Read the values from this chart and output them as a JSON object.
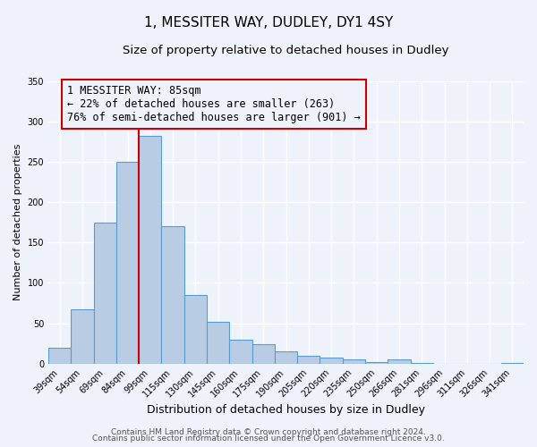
{
  "title": "1, MESSITER WAY, DUDLEY, DY1 4SY",
  "subtitle": "Size of property relative to detached houses in Dudley",
  "xlabel": "Distribution of detached houses by size in Dudley",
  "ylabel": "Number of detached properties",
  "bar_labels": [
    "39sqm",
    "54sqm",
    "69sqm",
    "84sqm",
    "99sqm",
    "115sqm",
    "130sqm",
    "145sqm",
    "160sqm",
    "175sqm",
    "190sqm",
    "205sqm",
    "220sqm",
    "235sqm",
    "250sqm",
    "266sqm",
    "281sqm",
    "296sqm",
    "311sqm",
    "326sqm",
    "341sqm"
  ],
  "bar_values": [
    20,
    67,
    175,
    250,
    282,
    170,
    85,
    52,
    30,
    24,
    15,
    10,
    7,
    5,
    2,
    5,
    1,
    0,
    0,
    0,
    1
  ],
  "bar_color": "#b8cce4",
  "bar_edgecolor": "#5b9bd5",
  "vline_color": "#cc0000",
  "vline_index": 3.5,
  "annotation_line1": "1 MESSITER WAY: 85sqm",
  "annotation_line2": "← 22% of detached houses are smaller (263)",
  "annotation_line3": "76% of semi-detached houses are larger (901) →",
  "annotation_box_edgecolor": "#cc0000",
  "ylim": [
    0,
    350
  ],
  "yticks": [
    0,
    50,
    100,
    150,
    200,
    250,
    300,
    350
  ],
  "footer1": "Contains HM Land Registry data © Crown copyright and database right 2024.",
  "footer2": "Contains public sector information licensed under the Open Government Licence v3.0.",
  "background_color": "#eef2fa",
  "grid_color": "#ffffff",
  "title_fontsize": 11,
  "subtitle_fontsize": 9.5,
  "xlabel_fontsize": 9,
  "ylabel_fontsize": 8,
  "tick_fontsize": 7,
  "annotation_fontsize": 8.5,
  "footer_fontsize": 6.5
}
